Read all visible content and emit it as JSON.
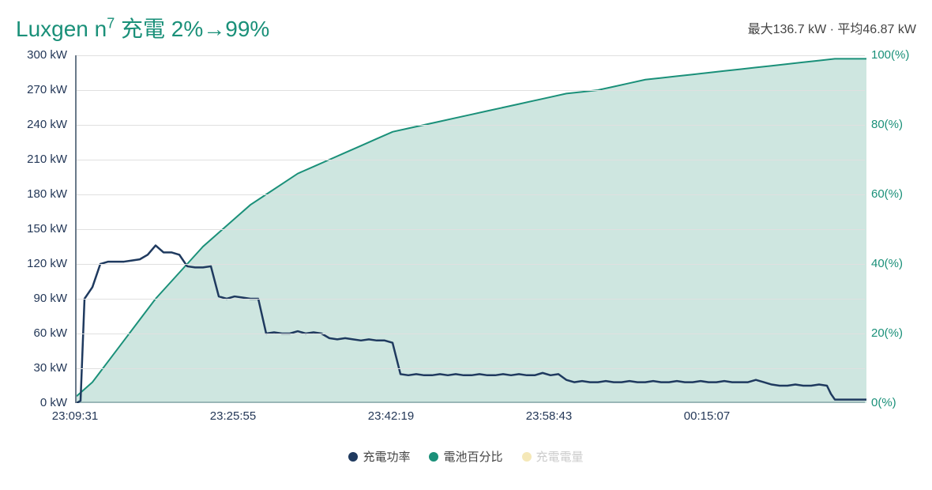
{
  "chart": {
    "type": "line-area-dual-axis",
    "title_prefix": "Luxgen n",
    "title_sup": "7",
    "title_suffix": " 充電 2%→99%",
    "title_color": "#1a9079",
    "title_fontsize": 28,
    "stat_max_label": "最大",
    "stat_max_value": "136.7 kW",
    "stat_avg_label": "平均",
    "stat_avg_value": "46.87 kW",
    "stat_separator": " · ",
    "stat_color": "#444444",
    "background_color": "#ffffff",
    "axis_line_color": "#6a7a8a",
    "grid_color": "#e0e0e0",
    "y_left": {
      "label_color": "#243858",
      "unit": "kW",
      "min": 0,
      "max": 300,
      "step": 30,
      "ticks": [
        "0 kW",
        "30 kW",
        "60 kW",
        "90 kW",
        "120 kW",
        "150 kW",
        "180 kW",
        "210 kW",
        "240 kW",
        "270 kW",
        "300 kW"
      ]
    },
    "y_right": {
      "label_color": "#1a9079",
      "unit": "(%)",
      "min": 0,
      "max": 100,
      "step": 20,
      "ticks": [
        "0(%)",
        "20(%)",
        "40(%)",
        "60(%)",
        "80(%)",
        "100(%)"
      ]
    },
    "x_axis": {
      "labels": [
        "23:09:31",
        "23:25:55",
        "23:42:19",
        "23:58:43",
        "00:15:07"
      ],
      "positions_pct": [
        0,
        20,
        40,
        60,
        80
      ]
    },
    "series_power": {
      "name": "充電功率",
      "color": "#1f3a5f",
      "line_width": 2.5,
      "data_kw": [
        [
          0,
          0
        ],
        [
          0.5,
          2
        ],
        [
          1,
          90
        ],
        [
          1.5,
          95
        ],
        [
          2,
          100
        ],
        [
          3,
          120
        ],
        [
          4,
          122
        ],
        [
          5,
          122
        ],
        [
          6,
          122
        ],
        [
          7,
          123
        ],
        [
          8,
          124
        ],
        [
          9,
          128
        ],
        [
          10,
          136
        ],
        [
          11,
          130
        ],
        [
          12,
          130
        ],
        [
          13,
          128
        ],
        [
          14,
          118
        ],
        [
          15,
          117
        ],
        [
          16,
          117
        ],
        [
          17,
          118
        ],
        [
          18,
          92
        ],
        [
          19,
          90
        ],
        [
          20,
          92
        ],
        [
          21,
          91
        ],
        [
          22,
          90
        ],
        [
          23,
          90
        ],
        [
          24,
          60
        ],
        [
          25,
          61
        ],
        [
          26,
          60
        ],
        [
          27,
          60
        ],
        [
          28,
          62
        ],
        [
          29,
          60
        ],
        [
          30,
          61
        ],
        [
          31,
          60
        ],
        [
          32,
          56
        ],
        [
          33,
          55
        ],
        [
          34,
          56
        ],
        [
          35,
          55
        ],
        [
          36,
          54
        ],
        [
          37,
          55
        ],
        [
          38,
          54
        ],
        [
          39,
          54
        ],
        [
          40,
          52
        ],
        [
          41,
          25
        ],
        [
          42,
          24
        ],
        [
          43,
          25
        ],
        [
          44,
          24
        ],
        [
          45,
          24
        ],
        [
          46,
          25
        ],
        [
          47,
          24
        ],
        [
          48,
          25
        ],
        [
          49,
          24
        ],
        [
          50,
          24
        ],
        [
          51,
          25
        ],
        [
          52,
          24
        ],
        [
          53,
          24
        ],
        [
          54,
          25
        ],
        [
          55,
          24
        ],
        [
          56,
          25
        ],
        [
          57,
          24
        ],
        [
          58,
          24
        ],
        [
          59,
          26
        ],
        [
          60,
          24
        ],
        [
          61,
          25
        ],
        [
          62,
          20
        ],
        [
          63,
          18
        ],
        [
          64,
          19
        ],
        [
          65,
          18
        ],
        [
          66,
          18
        ],
        [
          67,
          19
        ],
        [
          68,
          18
        ],
        [
          69,
          18
        ],
        [
          70,
          19
        ],
        [
          71,
          18
        ],
        [
          72,
          18
        ],
        [
          73,
          19
        ],
        [
          74,
          18
        ],
        [
          75,
          18
        ],
        [
          76,
          19
        ],
        [
          77,
          18
        ],
        [
          78,
          18
        ],
        [
          79,
          19
        ],
        [
          80,
          18
        ],
        [
          81,
          18
        ],
        [
          82,
          19
        ],
        [
          83,
          18
        ],
        [
          84,
          18
        ],
        [
          85,
          18
        ],
        [
          86,
          20
        ],
        [
          87,
          18
        ],
        [
          88,
          16
        ],
        [
          89,
          15
        ],
        [
          90,
          15
        ],
        [
          91,
          16
        ],
        [
          92,
          15
        ],
        [
          93,
          15
        ],
        [
          94,
          16
        ],
        [
          95,
          15
        ],
        [
          95.5,
          8
        ],
        [
          96,
          3
        ],
        [
          97,
          3
        ],
        [
          98,
          3
        ],
        [
          99,
          3
        ],
        [
          100,
          3
        ]
      ]
    },
    "series_battery": {
      "name": "電池百分比",
      "color": "#1a9079",
      "fill_color": "#b3d9cf",
      "fill_opacity": 0.65,
      "line_width": 2,
      "data_pct": [
        [
          0,
          2
        ],
        [
          2,
          6
        ],
        [
          4,
          12
        ],
        [
          6,
          18
        ],
        [
          8,
          24
        ],
        [
          10,
          30
        ],
        [
          12,
          35
        ],
        [
          14,
          40
        ],
        [
          16,
          45
        ],
        [
          18,
          49
        ],
        [
          20,
          53
        ],
        [
          22,
          57
        ],
        [
          24,
          60
        ],
        [
          26,
          63
        ],
        [
          28,
          66
        ],
        [
          30,
          68
        ],
        [
          32,
          70
        ],
        [
          34,
          72
        ],
        [
          36,
          74
        ],
        [
          38,
          76
        ],
        [
          40,
          78
        ],
        [
          42,
          79
        ],
        [
          44,
          80
        ],
        [
          46,
          81
        ],
        [
          48,
          82
        ],
        [
          50,
          83
        ],
        [
          52,
          84
        ],
        [
          54,
          85
        ],
        [
          56,
          86
        ],
        [
          58,
          87
        ],
        [
          60,
          88
        ],
        [
          62,
          89
        ],
        [
          64,
          89.5
        ],
        [
          66,
          90
        ],
        [
          68,
          91
        ],
        [
          70,
          92
        ],
        [
          72,
          93
        ],
        [
          74,
          93.5
        ],
        [
          76,
          94
        ],
        [
          78,
          94.5
        ],
        [
          80,
          95
        ],
        [
          82,
          95.5
        ],
        [
          84,
          96
        ],
        [
          86,
          96.5
        ],
        [
          88,
          97
        ],
        [
          90,
          97.5
        ],
        [
          92,
          98
        ],
        [
          94,
          98.5
        ],
        [
          96,
          99
        ],
        [
          98,
          99
        ],
        [
          100,
          99
        ]
      ]
    },
    "series_energy": {
      "name": "充電電量",
      "color": "#f5e8b8",
      "hidden": true
    },
    "legend": {
      "items": [
        {
          "label": "充電功率",
          "color": "#1f3a5f",
          "muted": false
        },
        {
          "label": "電池百分比",
          "color": "#1a9079",
          "muted": false
        },
        {
          "label": "充電電量",
          "color": "#f5e8b8",
          "muted": true
        }
      ],
      "muted_text_color": "#cccccc",
      "text_color": "#444444"
    }
  }
}
